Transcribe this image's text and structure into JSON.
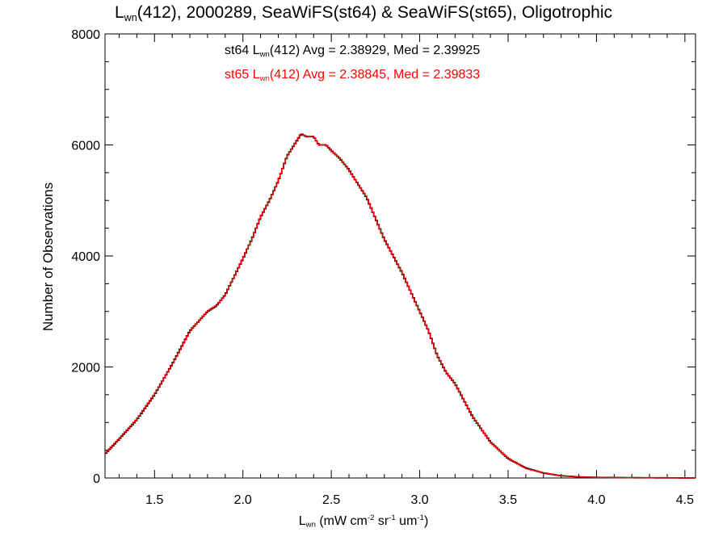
{
  "chart_data": {
    "type": "line",
    "title": {
      "prefix": "L",
      "sub": "wn",
      "rest": "(412), 2000289, SeaWiFS(st64) & SeaWiFS(st65), Oligotrophic"
    },
    "xlabel": {
      "prefix": "L",
      "sub": "wn",
      "p1": " (mW cm",
      "sup1": "-2",
      "p2": " sr",
      "sup2": "-1",
      "p3": " um",
      "sup3": "-1",
      "p4": ")"
    },
    "ylabel": "Number of Observations",
    "xlim": [
      1.22,
      4.56
    ],
    "ylim": [
      0,
      8000
    ],
    "x_ticks": [
      "1.5",
      "2.0",
      "2.5",
      "3.0",
      "3.5",
      "4.0",
      "4.5"
    ],
    "y_ticks": [
      "0",
      "2000",
      "4000",
      "6000",
      "8000"
    ],
    "annotations": [
      {
        "pre": "st64 L",
        "sub": "wn",
        "post": "(412) Avg = 2.38929, Med = 2.39925",
        "color": "#000000"
      },
      {
        "pre": "st65 L",
        "sub": "wn",
        "post": "(412) Avg = 2.38845, Med = 2.39833",
        "color": "#ff0000"
      }
    ],
    "series": [
      {
        "color": "#000000",
        "x": [
          1.22,
          1.3,
          1.4,
          1.5,
          1.6,
          1.7,
          1.8,
          1.85,
          1.9,
          2.0,
          2.05,
          2.1,
          2.15,
          2.2,
          2.25,
          2.3,
          2.33,
          2.36,
          2.4,
          2.43,
          2.47,
          2.5,
          2.55,
          2.6,
          2.7,
          2.8,
          2.9,
          3.0,
          3.05,
          3.1,
          3.15,
          3.2,
          3.3,
          3.4,
          3.5,
          3.6,
          3.7,
          3.8,
          3.9,
          4.0,
          4.2,
          4.56
        ],
        "y": [
          430,
          700,
          1050,
          1500,
          2050,
          2650,
          3000,
          3100,
          3300,
          3950,
          4300,
          4700,
          5000,
          5350,
          5800,
          6050,
          6200,
          6150,
          6150,
          6000,
          6000,
          5900,
          5750,
          5550,
          5050,
          4300,
          3700,
          3000,
          2650,
          2200,
          1900,
          1700,
          1100,
          650,
          350,
          180,
          90,
          40,
          20,
          10,
          5,
          0
        ]
      },
      {
        "color": "#ff0000",
        "x": [
          1.22,
          1.3,
          1.4,
          1.5,
          1.6,
          1.7,
          1.8,
          1.85,
          1.9,
          2.0,
          2.05,
          2.1,
          2.15,
          2.2,
          2.25,
          2.3,
          2.33,
          2.36,
          2.4,
          2.43,
          2.47,
          2.5,
          2.55,
          2.6,
          2.7,
          2.8,
          2.9,
          3.0,
          3.05,
          3.1,
          3.15,
          3.2,
          3.3,
          3.4,
          3.5,
          3.6,
          3.7,
          3.8,
          3.9,
          4.0,
          4.2,
          4.56
        ],
        "y": [
          440,
          710,
          1060,
          1510,
          2040,
          2640,
          3010,
          3110,
          3290,
          3960,
          4290,
          4710,
          4990,
          5360,
          5790,
          6060,
          6210,
          6140,
          6160,
          5990,
          6010,
          5890,
          5760,
          5540,
          5060,
          4290,
          3710,
          2990,
          2660,
          2190,
          1910,
          1690,
          1110,
          640,
          360,
          170,
          95,
          38,
          22,
          9,
          4,
          0
        ]
      }
    ]
  }
}
